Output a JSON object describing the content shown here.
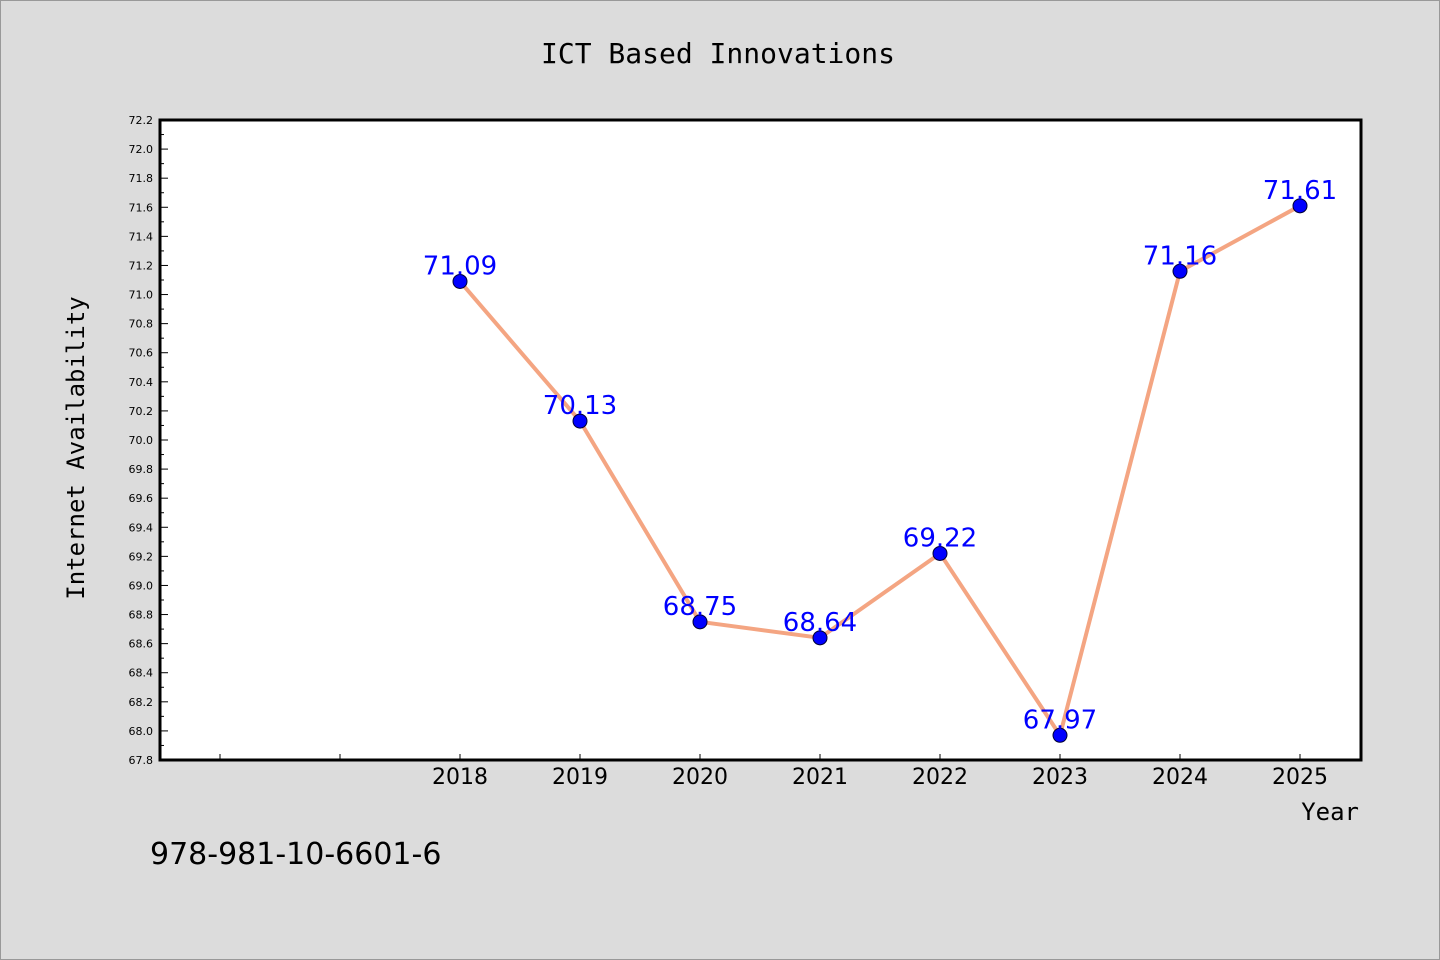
{
  "chart_data": {
    "type": "line",
    "title": "ICT Based Innovations",
    "xlabel": "Year",
    "ylabel": "Internet Availability",
    "x": [
      "2018",
      "2019",
      "2020",
      "2021",
      "2022",
      "2023",
      "2024",
      "2025"
    ],
    "series": [
      {
        "values": [
          71.09,
          70.13,
          68.75,
          68.64,
          69.22,
          67.97,
          71.16,
          71.61
        ],
        "labels": [
          "71.09",
          "70.13",
          "68.75",
          "68.64",
          "69.22",
          "67.97",
          "71.16",
          "71.61"
        ]
      }
    ],
    "ylim": [
      67.8,
      72.2
    ],
    "yticks": [
      "67.8",
      "68.0",
      "68.2",
      "68.4",
      "68.6",
      "68.8",
      "69.0",
      "69.2",
      "69.4",
      "69.6",
      "69.8",
      "70.0",
      "70.2",
      "70.4",
      "70.6",
      "70.8",
      "71.0",
      "71.2",
      "71.4",
      "71.6",
      "71.8",
      "72.0",
      "72.2"
    ],
    "grid": false,
    "legend": "none",
    "line_color": "#f4a582",
    "marker_color": "#0000ff",
    "label_color": "#0000ff"
  },
  "footer": {
    "text": "978-981-10-6601-6"
  }
}
